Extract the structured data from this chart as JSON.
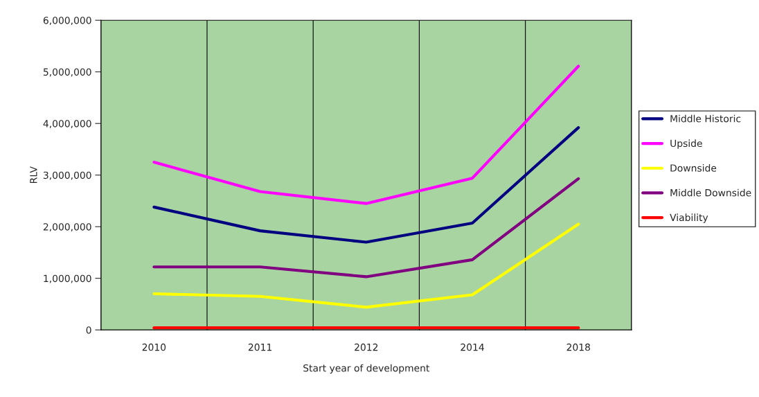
{
  "chart_data": {
    "type": "line",
    "xlabel": "Start year of development",
    "ylabel": "RLV",
    "categories": [
      "2010",
      "2011",
      "2012",
      "2014",
      "2018"
    ],
    "series": [
      {
        "name": "Middle Historic",
        "color": "#000080",
        "values": [
          2380000,
          1920000,
          1700000,
          2070000,
          3920000
        ]
      },
      {
        "name": "Upside",
        "color": "#ff00ff",
        "values": [
          3250000,
          2680000,
          2450000,
          2940000,
          5110000
        ]
      },
      {
        "name": "Downside",
        "color": "#ffff00",
        "values": [
          700000,
          650000,
          440000,
          680000,
          2050000
        ]
      },
      {
        "name": "Middle Downside",
        "color": "#800080",
        "values": [
          1220000,
          1220000,
          1030000,
          1360000,
          2930000
        ]
      },
      {
        "name": "Viability",
        "color": "#ff0000",
        "values": [
          40000,
          40000,
          40000,
          40000,
          40000
        ]
      }
    ],
    "ylim": [
      0,
      6000000
    ],
    "yticks": [
      {
        "value": 0,
        "label": "0"
      },
      {
        "value": 1000000,
        "label": "1,000,000"
      },
      {
        "value": 2000000,
        "label": "2,000,000"
      },
      {
        "value": 3000000,
        "label": "3,000,000"
      },
      {
        "value": 4000000,
        "label": "4,000,000"
      },
      {
        "value": 5000000,
        "label": "5,000,000"
      },
      {
        "value": 6000000,
        "label": "6,000,000"
      }
    ],
    "grid": "x",
    "legend": "right",
    "marker": "none",
    "line_style": "solid"
  }
}
